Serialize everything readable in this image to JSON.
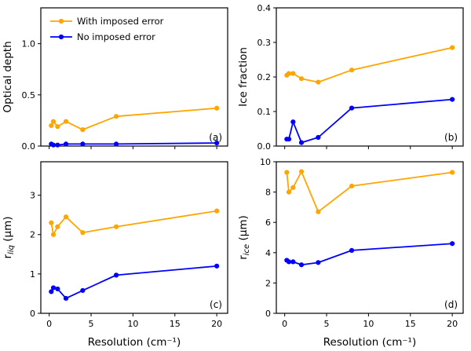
{
  "figure": {
    "background": "#ffffff",
    "xlabel": "Resolution (cm⁻¹)",
    "accent_orange": "#ffa500",
    "accent_blue": "#0000ff",
    "legend_labels": [
      "With imposed error",
      "No imposed error"
    ]
  },
  "chart_data": [
    {
      "type": "line",
      "panel_label": "(a)",
      "ylabel": "Optical depth",
      "x": [
        0.25,
        0.5,
        1,
        2,
        4,
        8,
        20
      ],
      "series": [
        {
          "name": "With imposed error",
          "color": "#ffa500",
          "values": [
            0.2,
            0.24,
            0.19,
            0.24,
            0.16,
            0.29,
            0.37
          ]
        },
        {
          "name": "No imposed error",
          "color": "#0000ff",
          "values": [
            0.02,
            0.01,
            0.01,
            0.02,
            0.02,
            0.02,
            0.03
          ]
        }
      ],
      "xlim": [
        -1,
        21.3
      ],
      "ylim": [
        0,
        1.35
      ],
      "xticks": [
        0,
        5,
        10,
        15,
        20
      ],
      "xticklabels": [
        "0",
        "5",
        "10",
        "15",
        "20"
      ],
      "yticks": [
        0.0,
        0.5,
        1.0
      ],
      "yticklabels": [
        "0.0",
        "0.5",
        "1.0"
      ],
      "grid": false,
      "legend": true,
      "legend_position": "upper left"
    },
    {
      "type": "line",
      "panel_label": "(b)",
      "ylabel": "Ice fraction",
      "x": [
        0.25,
        0.5,
        1,
        2,
        4,
        8,
        20
      ],
      "series": [
        {
          "name": "With imposed error",
          "color": "#ffa500",
          "values": [
            0.205,
            0.21,
            0.21,
            0.195,
            0.185,
            0.22,
            0.285
          ]
        },
        {
          "name": "No imposed error",
          "color": "#0000ff",
          "values": [
            0.02,
            0.02,
            0.07,
            0.01,
            0.025,
            0.11,
            0.135
          ]
        }
      ],
      "xlim": [
        -1,
        21.3
      ],
      "ylim": [
        0,
        0.4
      ],
      "xticks": [
        0,
        5,
        10,
        15,
        20
      ],
      "xticklabels": [
        "0",
        "5",
        "10",
        "15",
        "20"
      ],
      "yticks": [
        0.0,
        0.1,
        0.2,
        0.3,
        0.4
      ],
      "yticklabels": [
        "0.0",
        "0.1",
        "0.2",
        "0.3",
        "0.4"
      ],
      "grid": false,
      "legend": false
    },
    {
      "type": "line",
      "panel_label": "(c)",
      "ylabel_parts": {
        "pre": "r",
        "sub": "liq",
        "post": " (μm)"
      },
      "x": [
        0.25,
        0.5,
        1,
        2,
        4,
        8,
        20
      ],
      "series": [
        {
          "name": "With imposed error",
          "color": "#ffa500",
          "values": [
            2.3,
            2.0,
            2.2,
            2.45,
            2.05,
            2.2,
            2.6
          ]
        },
        {
          "name": "No imposed error",
          "color": "#0000ff",
          "values": [
            0.55,
            0.65,
            0.62,
            0.38,
            0.58,
            0.97,
            1.2
          ]
        }
      ],
      "xlim": [
        -1,
        21.3
      ],
      "ylim": [
        0,
        3.85
      ],
      "xticks": [
        0,
        5,
        10,
        15,
        20
      ],
      "xticklabels": [
        "0",
        "5",
        "10",
        "15",
        "20"
      ],
      "yticks": [
        0,
        1,
        2,
        3
      ],
      "yticklabels": [
        "0",
        "1",
        "2",
        "3"
      ],
      "grid": false,
      "legend": false
    },
    {
      "type": "line",
      "panel_label": "(d)",
      "ylabel_parts": {
        "pre": "r",
        "sub": "ice",
        "post": " (μm)"
      },
      "x": [
        0.25,
        0.5,
        1,
        2,
        4,
        8,
        20
      ],
      "series": [
        {
          "name": "With imposed error",
          "color": "#ffa500",
          "values": [
            9.3,
            8.0,
            8.3,
            9.35,
            6.7,
            8.4,
            9.3
          ]
        },
        {
          "name": "No imposed error",
          "color": "#0000ff",
          "values": [
            3.5,
            3.4,
            3.4,
            3.2,
            3.35,
            4.15,
            4.6
          ]
        }
      ],
      "xlim": [
        -1,
        21.3
      ],
      "ylim": [
        0,
        10
      ],
      "xticks": [
        0,
        5,
        10,
        15,
        20
      ],
      "xticklabels": [
        "0",
        "5",
        "10",
        "15",
        "20"
      ],
      "yticks": [
        0,
        2,
        4,
        6,
        8,
        10
      ],
      "yticklabels": [
        "0",
        "2",
        "4",
        "6",
        "8",
        "10"
      ],
      "grid": false,
      "legend": false
    }
  ]
}
